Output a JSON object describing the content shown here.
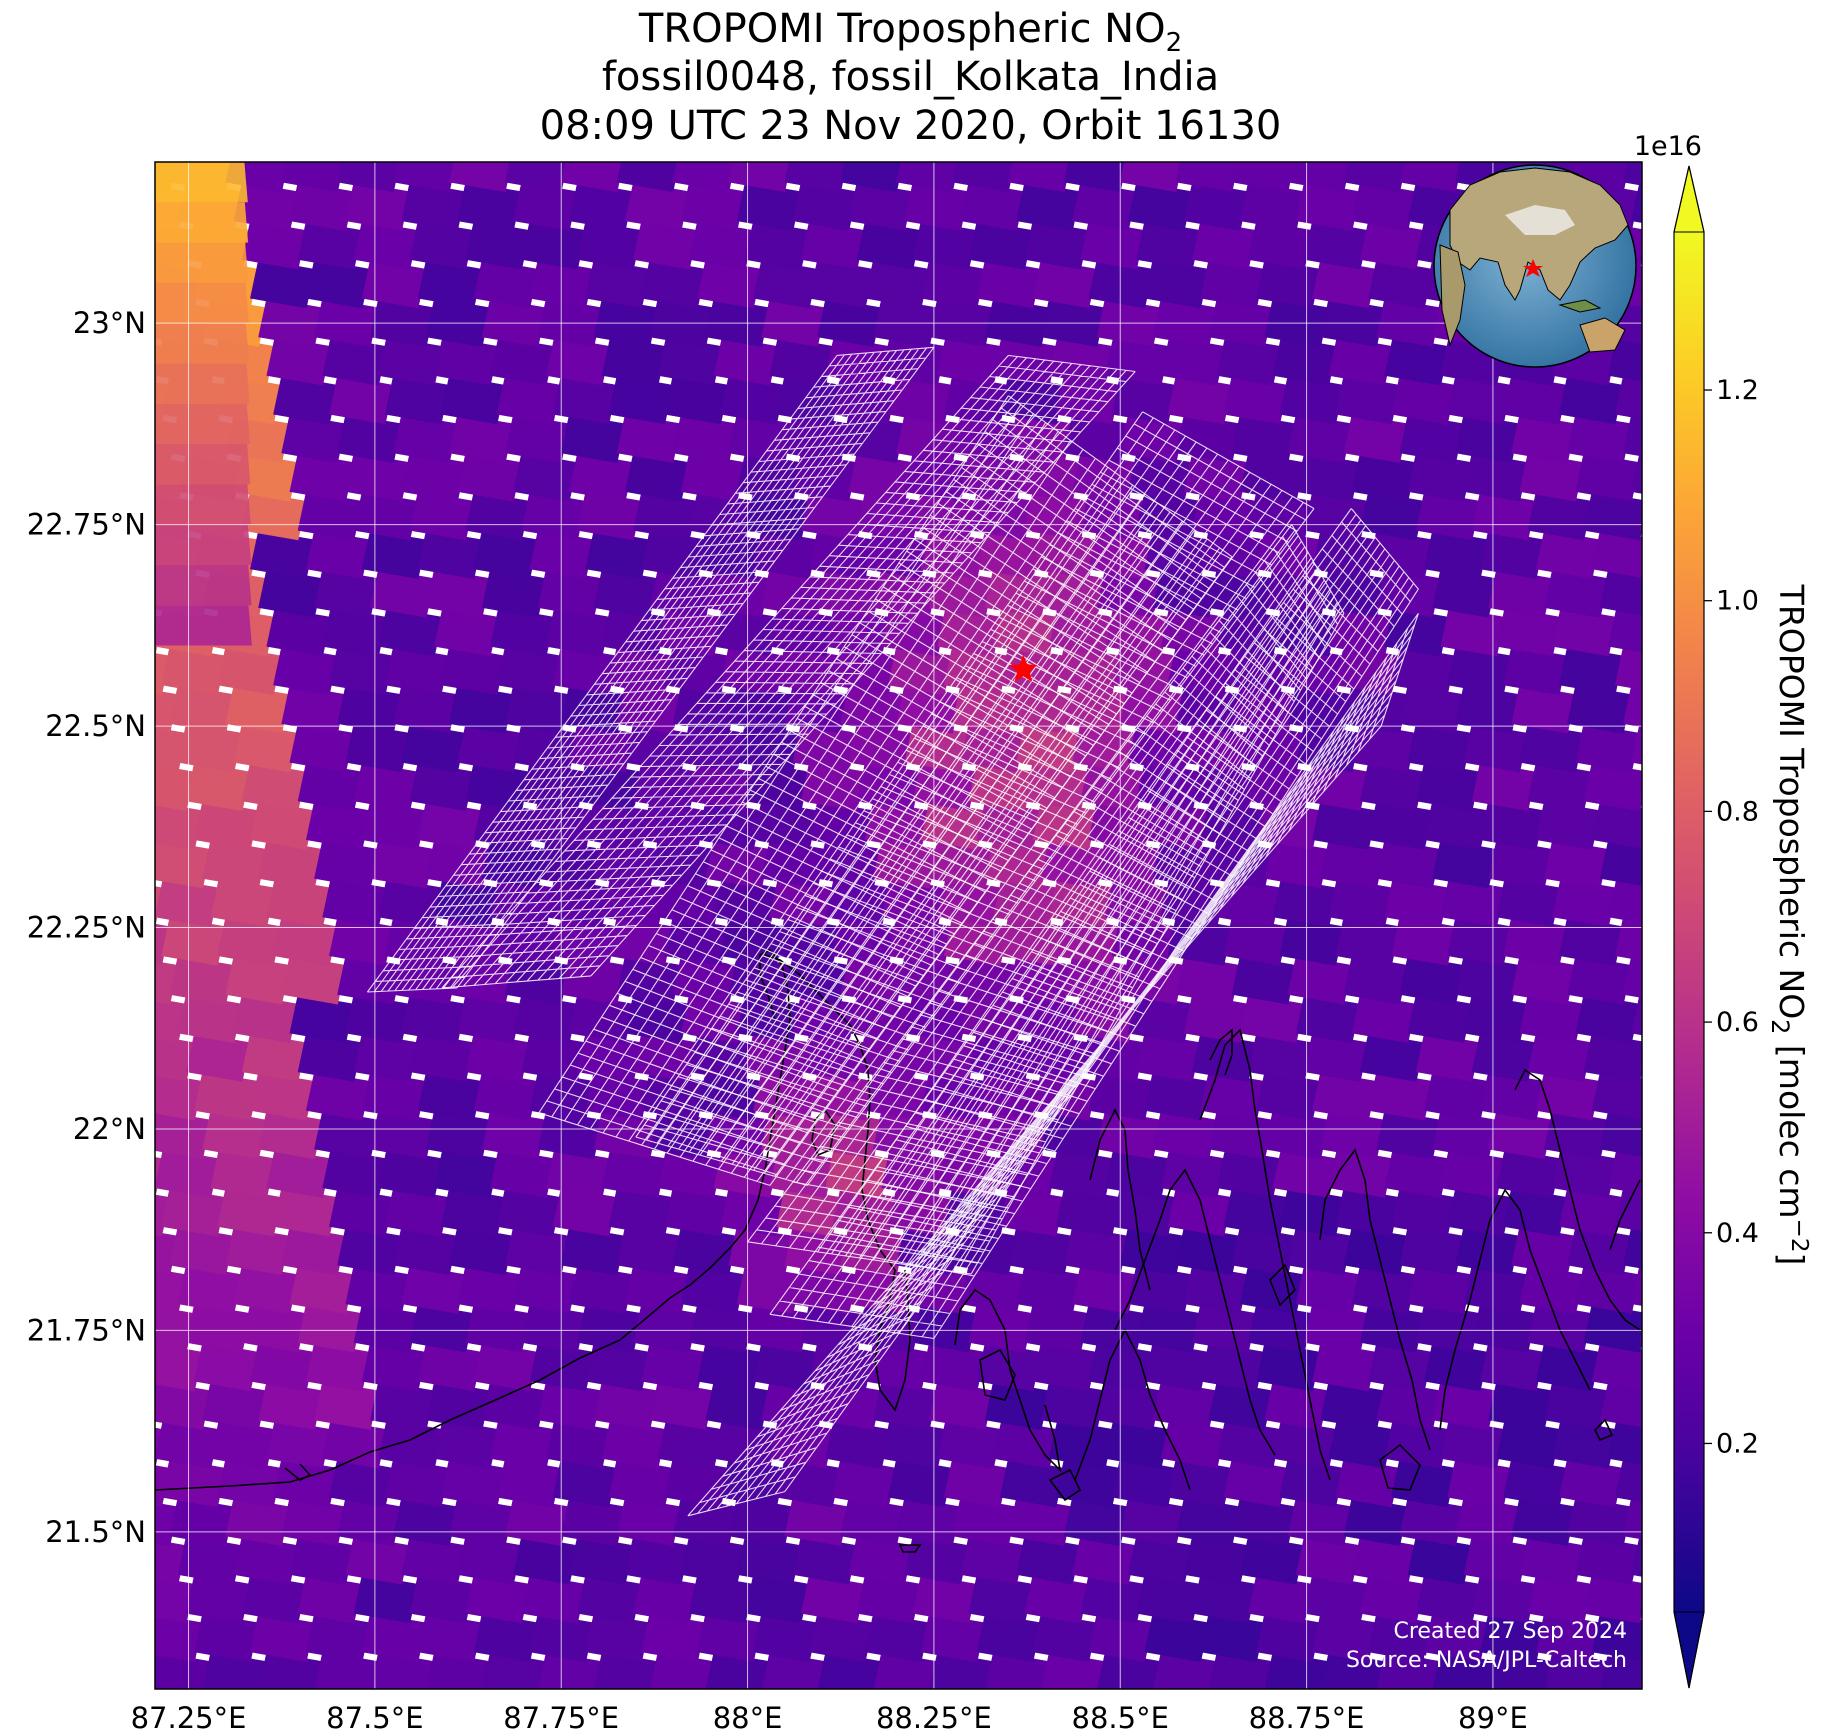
{
  "title": {
    "line1_main": "TROPOMI Tropospheric NO",
    "line1_sub": "2",
    "line2": "fossil0048, fossil_Kolkata_India",
    "line3": "08:09 UTC 23 Nov 2020, Orbit 16130"
  },
  "credits": {
    "created": "Created 27 Sep 2024",
    "source": "Source: NASA/JPL-Caltech"
  },
  "colorbar": {
    "exponent_label": "1e16",
    "label_main": "TROPOMI Tropospheric NO",
    "label_sub": "2",
    "label_units": " [molec cm",
    "label_units_sup": "−2",
    "label_close": "]",
    "min": 0.04,
    "max": 1.35,
    "ticks": [
      {
        "value": 0.2,
        "label": "0.2"
      },
      {
        "value": 0.4,
        "label": "0.4"
      },
      {
        "value": 0.6,
        "label": "0.6"
      },
      {
        "value": 0.8,
        "label": "0.8"
      },
      {
        "value": 1.0,
        "label": "1.0"
      },
      {
        "value": 1.2,
        "label": "1.2"
      }
    ],
    "colormap": "plasma",
    "colormap_stops": [
      "#0d0887",
      "#41049d",
      "#6a00a8",
      "#8f0da4",
      "#b12a90",
      "#cc4778",
      "#e16462",
      "#f2844b",
      "#fca636",
      "#fcce25",
      "#f0f921"
    ]
  },
  "chart_data": {
    "type": "heatmap",
    "xlim": [
      87.205,
      89.2
    ],
    "ylim": [
      21.305,
      23.2
    ],
    "x_ticks": [
      {
        "value": 87.25,
        "label": "87.25°E"
      },
      {
        "value": 87.5,
        "label": "87.5°E"
      },
      {
        "value": 87.75,
        "label": "87.75°E"
      },
      {
        "value": 88.0,
        "label": "88°E"
      },
      {
        "value": 88.25,
        "label": "88.25°E"
      },
      {
        "value": 88.5,
        "label": "88.5°E"
      },
      {
        "value": 88.75,
        "label": "88.75°E"
      },
      {
        "value": 89.0,
        "label": "89°E"
      }
    ],
    "y_ticks": [
      {
        "value": 21.5,
        "label": "21.5°N"
      },
      {
        "value": 21.75,
        "label": "21.75°N"
      },
      {
        "value": 22.0,
        "label": "22°N"
      },
      {
        "value": 22.25,
        "label": "22.25°N"
      },
      {
        "value": 22.5,
        "label": "22.5°N"
      },
      {
        "value": 22.75,
        "label": "22.75°N"
      },
      {
        "value": 23.0,
        "label": "23°N"
      }
    ],
    "grid": true,
    "background_field": "TROPOMI tropospheric NO2 column, typical 0.2–0.4e16 molec cm-2, hotspot near Kolkata ~0.7e16, high swath-edge strip in the northwest ~1.0–1.2e16",
    "target": {
      "name": "fossil_Kolkata_India",
      "lon": 88.37,
      "lat": 22.57,
      "marker": "red star"
    },
    "target_color": "#ff0000",
    "target_grids": [
      {
        "corners": [
          [
            87.49,
            22.17
          ],
          [
            87.61,
            22.175
          ],
          [
            88.25,
            22.97
          ],
          [
            88.12,
            22.96
          ]
        ],
        "nu": 13,
        "nv": 60
      },
      {
        "corners": [
          [
            87.59,
            22.175
          ],
          [
            87.79,
            22.19
          ],
          [
            88.52,
            22.94
          ],
          [
            88.35,
            22.96
          ]
        ],
        "nu": 14,
        "nv": 60
      },
      {
        "corners": [
          [
            87.72,
            22.02
          ],
          [
            88.03,
            21.93
          ],
          [
            88.65,
            22.71
          ],
          [
            88.35,
            22.91
          ]
        ],
        "nu": 18,
        "nv": 60
      },
      {
        "corners": [
          [
            87.85,
            21.99
          ],
          [
            88.08,
            21.93
          ],
          [
            88.76,
            22.77
          ],
          [
            88.53,
            22.89
          ]
        ],
        "nu": 16,
        "nv": 60
      },
      {
        "corners": [
          [
            88.0,
            21.86
          ],
          [
            88.3,
            21.82
          ],
          [
            88.8,
            22.64
          ],
          [
            88.73,
            22.75
          ]
        ],
        "nu": 16,
        "nv": 60
      },
      {
        "corners": [
          [
            88.03,
            21.77
          ],
          [
            88.25,
            21.74
          ],
          [
            88.9,
            22.67
          ],
          [
            88.81,
            22.77
          ]
        ],
        "nu": 14,
        "nv": 60
      },
      {
        "corners": [
          [
            87.92,
            21.52
          ],
          [
            88.05,
            21.55
          ],
          [
            88.9,
            22.64
          ],
          [
            88.85,
            22.5
          ]
        ],
        "nu": 10,
        "nv": 60
      }
    ],
    "grid_color": "#ffffff"
  }
}
